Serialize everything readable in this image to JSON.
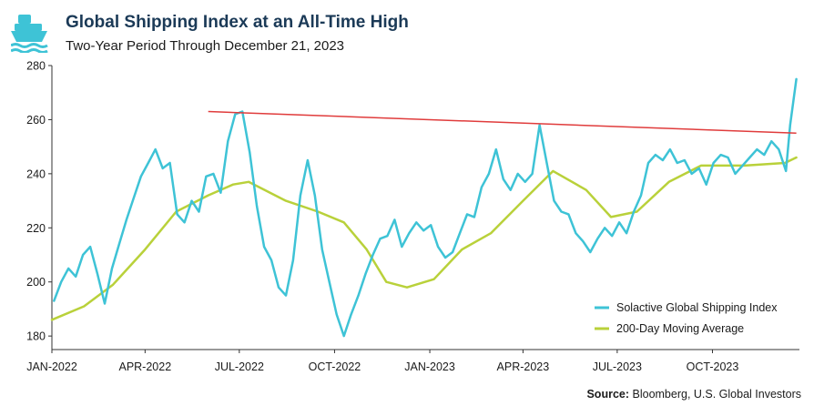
{
  "header": {
    "title": "Global Shipping Index at an All-Time High",
    "subtitle": "Two-Year Period Through December 21, 2023"
  },
  "source": {
    "label": "Source:",
    "text": "Bloomberg, U.S. Global Investors"
  },
  "colors": {
    "index": "#3ec3d6",
    "moving_average": "#b9d13a",
    "trendline": "#e03c3c",
    "title": "#1b3a57",
    "icon": "#3ec3d6"
  },
  "icon": "cargo-ship-icon",
  "chart_data": {
    "type": "line",
    "title": "Global Shipping Index at an All-Time High",
    "subtitle": "Two-Year Period Through December 21, 2023",
    "ylim": [
      175,
      280
    ],
    "yticks": [
      180,
      200,
      220,
      240,
      260,
      280
    ],
    "xlim": [
      "2022-01-01",
      "2023-12-24"
    ],
    "xticks": [
      {
        "date": "2022-01-01",
        "label": "JAN-2022"
      },
      {
        "date": "2022-04-01",
        "label": "APR-2022"
      },
      {
        "date": "2022-07-01",
        "label": "JUL-2022"
      },
      {
        "date": "2022-10-01",
        "label": "OCT-2022"
      },
      {
        "date": "2023-01-01",
        "label": "JAN-2023"
      },
      {
        "date": "2023-04-01",
        "label": "APR-2023"
      },
      {
        "date": "2023-07-01",
        "label": "JUL-2023"
      },
      {
        "date": "2023-10-01",
        "label": "OCT-2023"
      }
    ],
    "grid": false,
    "legend_position": "bottom-right",
    "series": [
      {
        "name": "Solactive Global Shipping Index",
        "color": "#3ec3d6",
        "points": [
          [
            "2022-01-03",
            193
          ],
          [
            "2022-01-10",
            200
          ],
          [
            "2022-01-17",
            205
          ],
          [
            "2022-01-24",
            202
          ],
          [
            "2022-01-31",
            210
          ],
          [
            "2022-02-07",
            213
          ],
          [
            "2022-02-14",
            203
          ],
          [
            "2022-02-21",
            192
          ],
          [
            "2022-02-28",
            205
          ],
          [
            "2022-03-07",
            214
          ],
          [
            "2022-03-14",
            223
          ],
          [
            "2022-03-21",
            231
          ],
          [
            "2022-03-28",
            239
          ],
          [
            "2022-04-04",
            244
          ],
          [
            "2022-04-11",
            249
          ],
          [
            "2022-04-18",
            242
          ],
          [
            "2022-04-25",
            244
          ],
          [
            "2022-05-02",
            225
          ],
          [
            "2022-05-09",
            222
          ],
          [
            "2022-05-16",
            230
          ],
          [
            "2022-05-23",
            226
          ],
          [
            "2022-05-30",
            239
          ],
          [
            "2022-06-06",
            240
          ],
          [
            "2022-06-13",
            233
          ],
          [
            "2022-06-20",
            252
          ],
          [
            "2022-06-27",
            262
          ],
          [
            "2022-07-04",
            263
          ],
          [
            "2022-07-11",
            248
          ],
          [
            "2022-07-18",
            228
          ],
          [
            "2022-07-25",
            213
          ],
          [
            "2022-08-01",
            208
          ],
          [
            "2022-08-08",
            198
          ],
          [
            "2022-08-15",
            195
          ],
          [
            "2022-08-22",
            208
          ],
          [
            "2022-08-29",
            232
          ],
          [
            "2022-09-05",
            245
          ],
          [
            "2022-09-12",
            232
          ],
          [
            "2022-09-19",
            212
          ],
          [
            "2022-09-26",
            200
          ],
          [
            "2022-10-03",
            188
          ],
          [
            "2022-10-10",
            180
          ],
          [
            "2022-10-17",
            188
          ],
          [
            "2022-10-24",
            195
          ],
          [
            "2022-10-31",
            203
          ],
          [
            "2022-11-07",
            210
          ],
          [
            "2022-11-14",
            216
          ],
          [
            "2022-11-21",
            217
          ],
          [
            "2022-11-28",
            223
          ],
          [
            "2022-12-05",
            213
          ],
          [
            "2022-12-12",
            218
          ],
          [
            "2022-12-19",
            222
          ],
          [
            "2022-12-26",
            219
          ],
          [
            "2023-01-02",
            221
          ],
          [
            "2023-01-09",
            213
          ],
          [
            "2023-01-16",
            209
          ],
          [
            "2023-01-23",
            211
          ],
          [
            "2023-01-30",
            218
          ],
          [
            "2023-02-06",
            225
          ],
          [
            "2023-02-13",
            224
          ],
          [
            "2023-02-20",
            235
          ],
          [
            "2023-02-27",
            240
          ],
          [
            "2023-03-06",
            249
          ],
          [
            "2023-03-13",
            238
          ],
          [
            "2023-03-20",
            234
          ],
          [
            "2023-03-27",
            240
          ],
          [
            "2023-04-03",
            237
          ],
          [
            "2023-04-10",
            240
          ],
          [
            "2023-04-17",
            258
          ],
          [
            "2023-04-24",
            244
          ],
          [
            "2023-05-01",
            230
          ],
          [
            "2023-05-08",
            226
          ],
          [
            "2023-05-15",
            225
          ],
          [
            "2023-05-22",
            218
          ],
          [
            "2023-05-29",
            215
          ],
          [
            "2023-06-05",
            211
          ],
          [
            "2023-06-12",
            216
          ],
          [
            "2023-06-19",
            220
          ],
          [
            "2023-06-26",
            217
          ],
          [
            "2023-07-03",
            222
          ],
          [
            "2023-07-10",
            218
          ],
          [
            "2023-07-17",
            226
          ],
          [
            "2023-07-24",
            232
          ],
          [
            "2023-07-31",
            244
          ],
          [
            "2023-08-07",
            247
          ],
          [
            "2023-08-14",
            245
          ],
          [
            "2023-08-21",
            249
          ],
          [
            "2023-08-28",
            244
          ],
          [
            "2023-09-04",
            245
          ],
          [
            "2023-09-11",
            240
          ],
          [
            "2023-09-18",
            242
          ],
          [
            "2023-09-25",
            236
          ],
          [
            "2023-10-02",
            244
          ],
          [
            "2023-10-09",
            247
          ],
          [
            "2023-10-16",
            246
          ],
          [
            "2023-10-23",
            240
          ],
          [
            "2023-10-30",
            243
          ],
          [
            "2023-11-06",
            246
          ],
          [
            "2023-11-13",
            249
          ],
          [
            "2023-11-20",
            247
          ],
          [
            "2023-11-27",
            252
          ],
          [
            "2023-12-04",
            249
          ],
          [
            "2023-12-11",
            241
          ],
          [
            "2023-12-15",
            258
          ],
          [
            "2023-12-21",
            275
          ]
        ]
      },
      {
        "name": "200-Day Moving Average",
        "color": "#b9d13a",
        "points": [
          [
            "2022-01-01",
            186
          ],
          [
            "2022-02-01",
            191
          ],
          [
            "2022-03-01",
            199
          ],
          [
            "2022-04-01",
            212
          ],
          [
            "2022-05-01",
            226
          ],
          [
            "2022-06-01",
            232
          ],
          [
            "2022-06-25",
            236
          ],
          [
            "2022-07-10",
            237
          ],
          [
            "2022-08-15",
            230
          ],
          [
            "2022-09-15",
            226
          ],
          [
            "2022-10-10",
            222
          ],
          [
            "2022-11-01",
            212
          ],
          [
            "2022-11-20",
            200
          ],
          [
            "2022-12-10",
            198
          ],
          [
            "2023-01-05",
            201
          ],
          [
            "2023-02-01",
            212
          ],
          [
            "2023-03-01",
            218
          ],
          [
            "2023-04-01",
            230
          ],
          [
            "2023-04-30",
            241
          ],
          [
            "2023-06-01",
            234
          ],
          [
            "2023-06-25",
            224
          ],
          [
            "2023-07-20",
            226
          ],
          [
            "2023-08-20",
            237
          ],
          [
            "2023-09-20",
            243
          ],
          [
            "2023-11-01",
            243
          ],
          [
            "2023-12-10",
            244
          ],
          [
            "2023-12-21",
            246
          ]
        ]
      }
    ],
    "trendline": {
      "color": "#e03c3c",
      "points": [
        [
          "2022-06-01",
          263
        ],
        [
          "2023-12-21",
          255
        ]
      ]
    },
    "legend": [
      {
        "label": "Solactive Global Shipping Index",
        "color": "#3ec3d6"
      },
      {
        "label": "200-Day Moving Average",
        "color": "#b9d13a"
      }
    ]
  }
}
